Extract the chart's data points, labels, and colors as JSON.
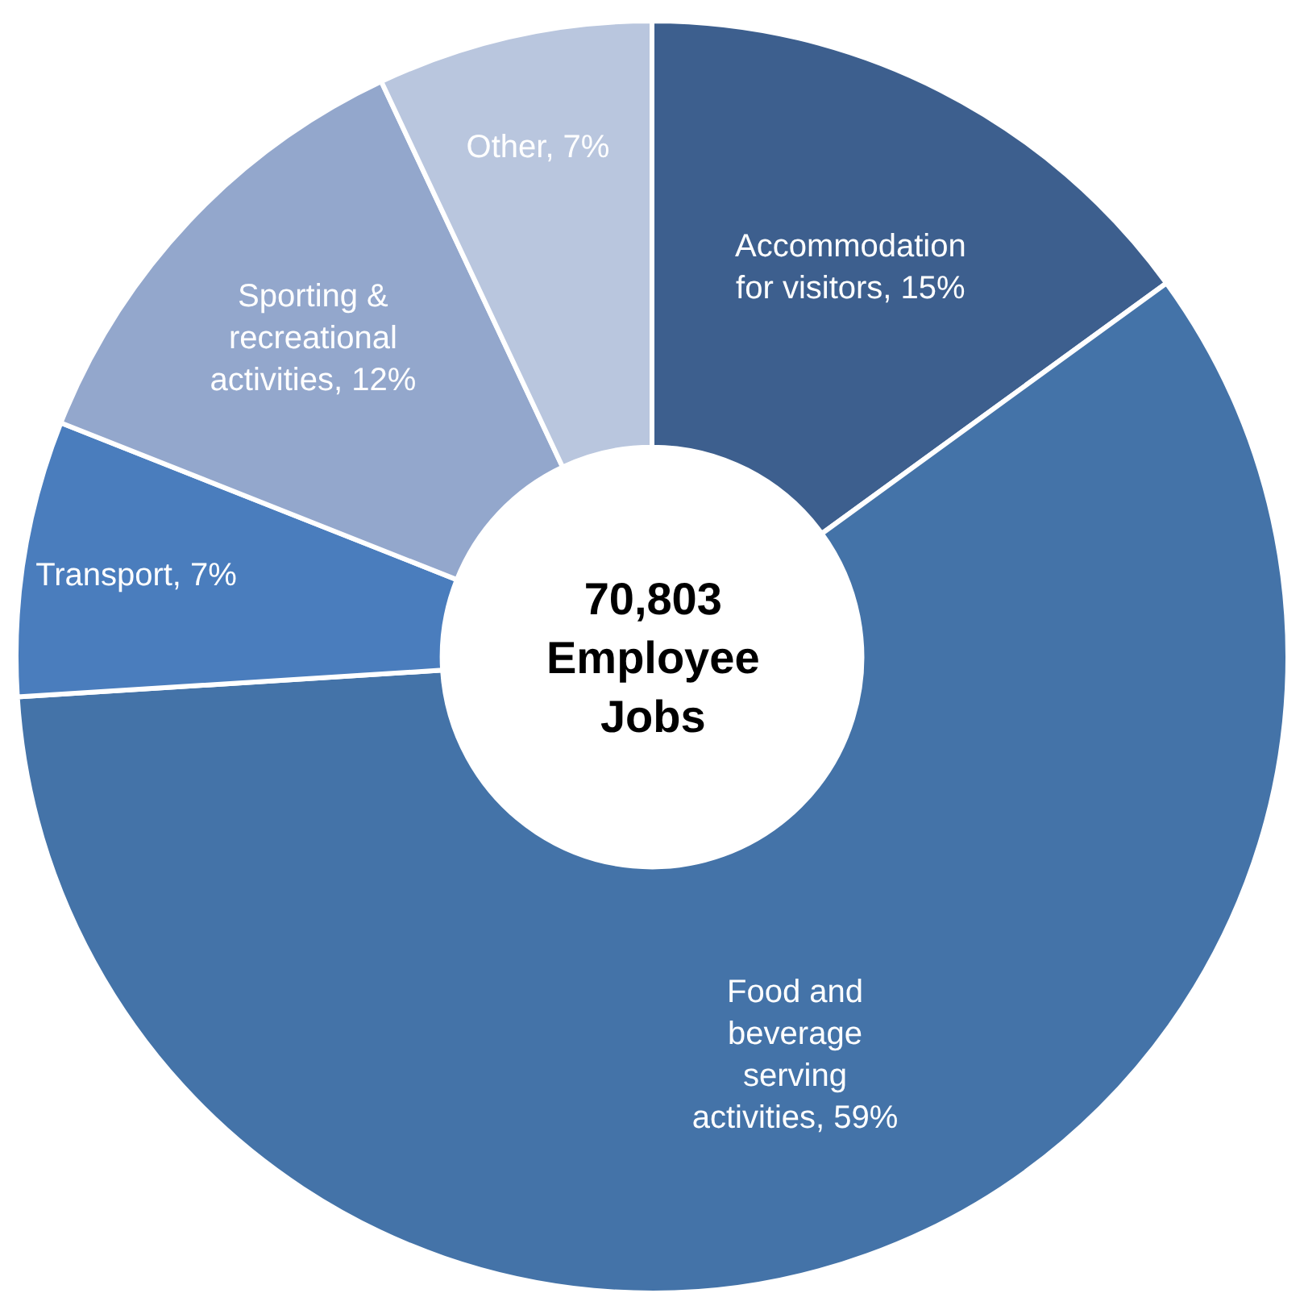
{
  "chart_data": {
    "type": "donut",
    "categories": [
      "Accommodation for visitors",
      "Food and beverage serving activities",
      "Transport",
      "Sporting & recreational activities",
      "Other"
    ],
    "values": [
      15,
      59,
      7,
      12,
      7
    ],
    "value_labels": [
      "15%",
      "59%",
      "7%",
      "12%",
      "7%"
    ],
    "colors": [
      "#3d5f8e",
      "#4473a8",
      "#4a7dbd",
      "#93a7cc",
      "#b9c6de"
    ],
    "annotations": [
      "70,803\nEmployee\nJobs"
    ],
    "legend": false
  }
}
